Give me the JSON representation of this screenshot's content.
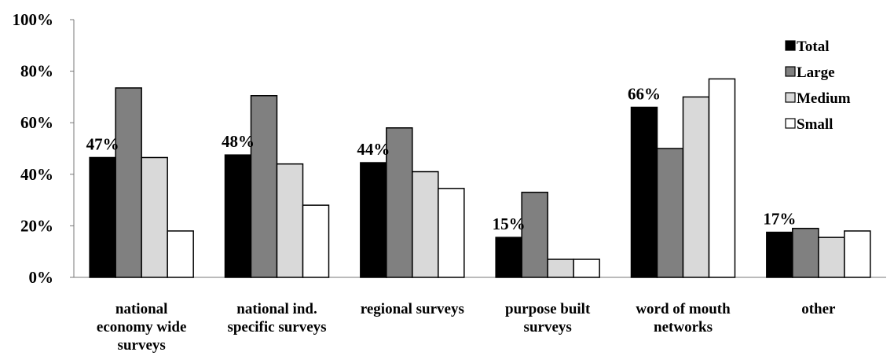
{
  "chart_data": {
    "type": "bar",
    "title": "",
    "xlabel": "",
    "ylabel": "",
    "ylim": [
      0,
      100
    ],
    "yticks": [
      "0%",
      "20%",
      "40%",
      "60%",
      "80%",
      "100%"
    ],
    "grid": false,
    "legend_position": "top-right",
    "categories": [
      [
        "national",
        "economy wide",
        "surveys"
      ],
      [
        "national ind.",
        "specific surveys"
      ],
      [
        "regional surveys"
      ],
      [
        "purpose built",
        "surveys"
      ],
      [
        "word of mouth",
        "networks"
      ],
      [
        "other"
      ]
    ],
    "series": [
      {
        "name": "Total",
        "color": "#000000",
        "values": [
          46.5,
          47.5,
          44.5,
          15.5,
          66,
          17.5
        ]
      },
      {
        "name": "Large",
        "color": "#808080",
        "values": [
          73.5,
          70.5,
          58,
          33,
          50,
          19
        ]
      },
      {
        "name": "Medium",
        "color": "#d9d9d9",
        "values": [
          46.5,
          44,
          41,
          7,
          70,
          15.5
        ]
      },
      {
        "name": "Small",
        "color": "#ffffff",
        "values": [
          18,
          28,
          34.5,
          7,
          77,
          18
        ]
      }
    ],
    "data_labels": [
      "47%",
      "48%",
      "44%",
      "15%",
      "66%",
      "17%"
    ]
  }
}
